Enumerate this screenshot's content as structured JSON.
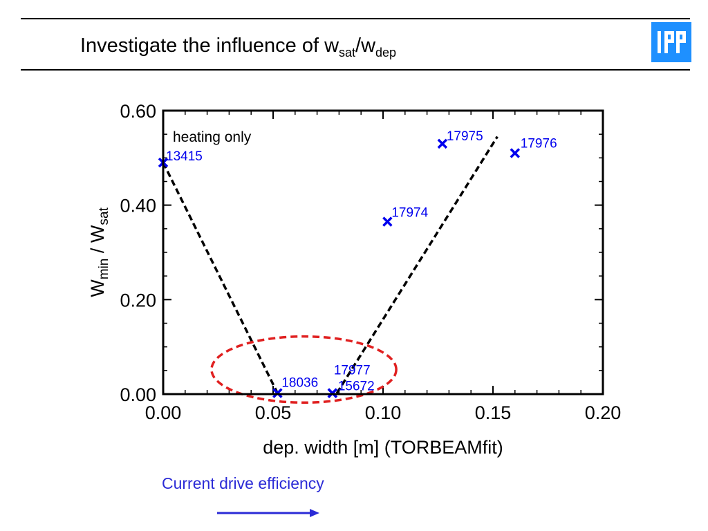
{
  "slide": {
    "title_main": "Investigate the influence of w",
    "title_sub1": "sat",
    "title_slash": "/w",
    "title_sub2": "dep",
    "logo_text": "IPP",
    "footer_caption": "Current drive efficiency",
    "accent_color": "#2b2bd6",
    "logo_color": "#1e90ff"
  },
  "chart_data": {
    "type": "scatter",
    "xlabel": "dep. width [m] (TORBEAMfit)",
    "ylabel_parts": [
      "W",
      "min",
      " / W",
      "sat"
    ],
    "xlim": [
      0.0,
      0.2
    ],
    "ylim": [
      0.0,
      0.6
    ],
    "x_ticks": [
      "0.00",
      "0.05",
      "0.10",
      "0.15",
      "0.20"
    ],
    "y_ticks": [
      "0.00",
      "0.20",
      "0.40",
      "0.60"
    ],
    "annotation": "heating only",
    "points": [
      {
        "x": 0.0,
        "y": 0.49,
        "label": "13415"
      },
      {
        "x": 0.052,
        "y": 0.002,
        "label": "18036"
      },
      {
        "x": 0.077,
        "y": 0.002,
        "label": "17977"
      },
      {
        "x": 0.077,
        "y": 0.002,
        "label": "15672"
      },
      {
        "x": 0.102,
        "y": 0.365,
        "label": "17974"
      },
      {
        "x": 0.127,
        "y": 0.53,
        "label": "17975"
      },
      {
        "x": 0.16,
        "y": 0.51,
        "label": "17976"
      }
    ],
    "trend_lines": [
      {
        "points": [
          [
            0.0,
            0.49
          ],
          [
            0.052,
            0.002
          ]
        ]
      },
      {
        "points": [
          [
            0.079,
            0.002
          ],
          [
            0.152,
            0.545
          ]
        ]
      }
    ],
    "highlight_ellipse": {
      "cx": 0.064,
      "cy": 0.052,
      "rx": 0.042,
      "ry": 0.07
    },
    "point_color": "#0000ee",
    "line_color": "#000000",
    "highlight_color": "#e02020"
  }
}
